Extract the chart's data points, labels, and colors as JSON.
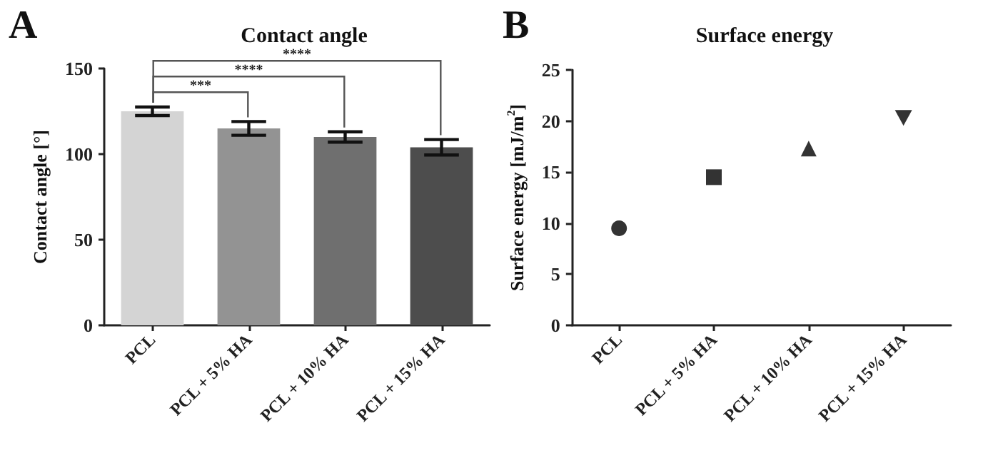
{
  "chart_data": [
    {
      "type": "bar",
      "title": "Contact angle",
      "ylabel": "Contact angle [°]",
      "categories": [
        "PCL",
        "PCL + 5% HA",
        "PCL + 10% HA",
        "PCL + 15% HA"
      ],
      "values": [
        125,
        115,
        110,
        104
      ],
      "errors": [
        2.5,
        4,
        3,
        4.5
      ],
      "colors": [
        "#d4d4d4",
        "#939393",
        "#6f6f6f",
        "#4d4d4d"
      ],
      "ylim": [
        0,
        150
      ],
      "yticks": [
        0,
        50,
        100,
        150
      ],
      "grid": false,
      "annotations": [
        "A",
        "***",
        "****",
        "****"
      ]
    },
    {
      "type": "scatter",
      "title": "Surface energy",
      "ylabel": "Surface energy [mJ/m$^{2}$]",
      "categories": [
        "PCL",
        "PCL + 5% HA",
        "PCL + 10% HA",
        "PCL + 15% HA"
      ],
      "series": [
        {
          "color": "#000000",
          "marker": "circle",
          "values": [
            9.5,
            null,
            null,
            null
          ]
        },
        {
          "color": "#000000",
          "marker": "square",
          "values": [
            null,
            14.5,
            null,
            null
          ]
        },
        {
          "color": "#000000",
          "marker": "triangle",
          "values": [
            null,
            null,
            17.3,
            null
          ]
        },
        {
          "color": "#000000",
          "marker": "triangle-down",
          "values": [
            null,
            null,
            null,
            20.3
          ]
        }
      ],
      "ylim": [
        0,
        25
      ],
      "yticks": [
        0,
        5,
        10,
        15,
        20,
        25
      ],
      "grid": false,
      "annotations": [
        "B"
      ]
    }
  ]
}
